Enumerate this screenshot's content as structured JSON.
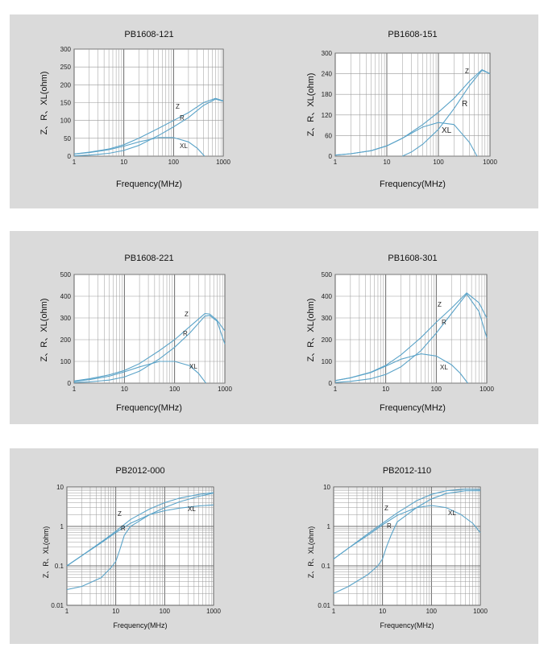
{
  "charts": [
    {
      "id": "pb1608-121",
      "type": "line",
      "title": "PB1608-121",
      "xlabel": "Frequency(MHz)",
      "ylabel": "Z、R、XL(ohm)",
      "xscale": "log",
      "yscale": "linear",
      "xlim": [
        1,
        1000
      ],
      "ylim": [
        0,
        300
      ],
      "xticks": [
        1,
        10,
        100,
        1000
      ],
      "yticks": [
        0,
        50,
        100,
        150,
        200,
        250,
        300
      ],
      "grid": true,
      "annotations": [
        "Z",
        "R",
        "XL"
      ],
      "series": [
        {
          "name": "Z",
          "x": [
            1,
            2,
            5,
            10,
            20,
            50,
            100,
            200,
            400,
            700,
            1000
          ],
          "y": [
            6,
            11,
            20,
            32,
            50,
            78,
            100,
            122,
            150,
            162,
            155
          ]
        },
        {
          "name": "R",
          "x": [
            1,
            2,
            5,
            10,
            20,
            50,
            100,
            200,
            400,
            700,
            1000
          ],
          "y": [
            1,
            3,
            8,
            16,
            30,
            58,
            82,
            108,
            142,
            160,
            154
          ]
        },
        {
          "name": "XL",
          "x": [
            1,
            2,
            5,
            10,
            20,
            50,
            100,
            200,
            300,
            420
          ],
          "y": [
            6,
            10,
            18,
            28,
            40,
            52,
            52,
            40,
            22,
            0
          ]
        }
      ]
    },
    {
      "id": "pb1608-151",
      "type": "line",
      "title": "PB1608-151",
      "xlabel": "Frequency(MHz)",
      "ylabel": "Z、R、XL(ohm)",
      "xscale": "log",
      "yscale": "linear",
      "xlim": [
        1,
        1000
      ],
      "ylim": [
        0,
        300
      ],
      "xticks": [
        1,
        10,
        100,
        1000
      ],
      "yticks": [
        0,
        60,
        120,
        180,
        240,
        300
      ],
      "grid": true,
      "annotations": [
        "Z",
        "R",
        "XL"
      ],
      "series": [
        {
          "name": "Z",
          "x": [
            1,
            2,
            5,
            10,
            20,
            50,
            100,
            200,
            400,
            700,
            1000
          ],
          "y": [
            3,
            7,
            16,
            30,
            52,
            92,
            128,
            168,
            218,
            252,
            240
          ]
        },
        {
          "name": "R",
          "x": [
            20,
            30,
            50,
            100,
            200,
            400,
            700,
            1000
          ],
          "y": [
            0,
            12,
            35,
            78,
            138,
            205,
            250,
            240
          ]
        },
        {
          "name": "XL",
          "x": [
            1,
            2,
            5,
            10,
            20,
            50,
            100,
            200,
            400,
            560
          ],
          "y": [
            3,
            7,
            16,
            30,
            52,
            85,
            98,
            92,
            40,
            0
          ]
        }
      ]
    },
    {
      "id": "pb1608-221",
      "type": "line",
      "title": "PB1608-221",
      "xlabel": "Frequency(MHz)",
      "ylabel": "Z、R、XL(ohm)",
      "xscale": "log",
      "yscale": "linear",
      "xlim": [
        1,
        1000
      ],
      "ylim": [
        0,
        500
      ],
      "xticks": [
        1,
        10,
        100,
        1000
      ],
      "yticks": [
        0,
        100,
        200,
        300,
        400,
        500
      ],
      "grid": true,
      "annotations": [
        "Z",
        "R",
        "XL"
      ],
      "series": [
        {
          "name": "Z",
          "x": [
            1,
            2,
            5,
            10,
            20,
            50,
            100,
            200,
            400,
            500,
            700,
            1000
          ],
          "y": [
            10,
            20,
            38,
            58,
            90,
            150,
            200,
            260,
            320,
            318,
            290,
            240
          ]
        },
        {
          "name": "R",
          "x": [
            1,
            2,
            5,
            10,
            20,
            50,
            100,
            200,
            400,
            500,
            700,
            1000
          ],
          "y": [
            3,
            6,
            14,
            28,
            55,
            112,
            165,
            230,
            308,
            312,
            285,
            180
          ]
        },
        {
          "name": "XL",
          "x": [
            1,
            2,
            5,
            10,
            20,
            50,
            100,
            200,
            300,
            420
          ],
          "y": [
            8,
            16,
            32,
            52,
            75,
            100,
            100,
            80,
            45,
            0
          ]
        }
      ]
    },
    {
      "id": "pb1608-301",
      "type": "line",
      "title": "PB1608-301",
      "xlabel": "Frequency(MHz)",
      "ylabel": "Z、R、XL(ohm)",
      "xscale": "log",
      "yscale": "linear",
      "xlim": [
        1,
        1000
      ],
      "ylim": [
        0,
        500
      ],
      "xticks": [
        1,
        10,
        100,
        1000
      ],
      "yticks": [
        0,
        100,
        200,
        300,
        400,
        500
      ],
      "grid": true,
      "annotations": [
        "Z",
        "R",
        "XL"
      ],
      "series": [
        {
          "name": "Z",
          "x": [
            1,
            2,
            5,
            10,
            20,
            50,
            100,
            200,
            400,
            700,
            1000
          ],
          "y": [
            12,
            25,
            50,
            82,
            130,
            210,
            280,
            345,
            415,
            370,
            300
          ]
        },
        {
          "name": "R",
          "x": [
            1,
            2,
            5,
            10,
            20,
            50,
            100,
            200,
            400,
            700,
            1000
          ],
          "y": [
            3,
            8,
            20,
            40,
            75,
            150,
            230,
            320,
            410,
            330,
            210
          ]
        },
        {
          "name": "XL",
          "x": [
            1,
            2,
            5,
            10,
            20,
            50,
            100,
            200,
            300,
            420
          ],
          "y": [
            12,
            24,
            48,
            78,
            110,
            135,
            125,
            85,
            45,
            0
          ]
        }
      ]
    },
    {
      "id": "pb2012-000",
      "type": "line",
      "title": "PB2012-000",
      "xlabel": "Frequency(MHz)",
      "ylabel": "Z、R、XL(ohm)",
      "xscale": "log",
      "yscale": "log",
      "xlim": [
        1,
        1000
      ],
      "ylim": [
        0.01,
        10
      ],
      "xticks": [
        1,
        10,
        100,
        1000
      ],
      "yticks": [
        0.01,
        0.1,
        1,
        10
      ],
      "grid": true,
      "annotations": [
        "Z",
        "R",
        "XL"
      ],
      "series": [
        {
          "name": "Z",
          "x": [
            1,
            2,
            5,
            10,
            20,
            50,
            100,
            200,
            500,
            1000
          ],
          "y": [
            0.1,
            0.18,
            0.4,
            0.75,
            1.5,
            2.8,
            4,
            5.2,
            6.5,
            7.2
          ]
        },
        {
          "name": "R",
          "x": [
            1,
            2,
            5,
            8,
            10,
            12,
            15,
            20,
            50,
            100,
            200,
            500,
            1000
          ],
          "y": [
            0.025,
            0.03,
            0.05,
            0.09,
            0.13,
            0.25,
            0.6,
            1.0,
            2.0,
            3.0,
            4.2,
            5.8,
            7.0
          ]
        },
        {
          "name": "XL",
          "x": [
            1,
            2,
            5,
            10,
            20,
            50,
            100,
            200,
            500,
            1000
          ],
          "y": [
            0.1,
            0.18,
            0.38,
            0.7,
            1.2,
            2.0,
            2.5,
            2.9,
            3.3,
            3.5
          ]
        }
      ]
    },
    {
      "id": "pb2012-110",
      "type": "line",
      "title": "PB2012-110",
      "xlabel": "Frequency(MHz)",
      "ylabel": "Z、R、XL(ohm)",
      "xscale": "log",
      "yscale": "log",
      "xlim": [
        1,
        1000
      ],
      "ylim": [
        0.01,
        10
      ],
      "xticks": [
        1,
        10,
        100,
        1000
      ],
      "yticks": [
        0.01,
        0.1,
        1,
        10
      ],
      "grid": true,
      "annotations": [
        "Z",
        "R",
        "XL"
      ],
      "series": [
        {
          "name": "Z",
          "x": [
            1,
            2,
            5,
            10,
            20,
            50,
            100,
            200,
            500,
            1000
          ],
          "y": [
            0.15,
            0.28,
            0.65,
            1.2,
            2.2,
            4.5,
            6.5,
            8,
            8.8,
            8.6
          ]
        },
        {
          "name": "R",
          "x": [
            1,
            2,
            5,
            8,
            10,
            12,
            15,
            20,
            50,
            100,
            200,
            500,
            1000
          ],
          "y": [
            0.02,
            0.03,
            0.06,
            0.1,
            0.15,
            0.3,
            0.6,
            1.3,
            3.0,
            5.0,
            6.8,
            8.0,
            8.0
          ]
        },
        {
          "name": "XL",
          "x": [
            1,
            2,
            5,
            10,
            20,
            50,
            100,
            200,
            400,
            700,
            1000
          ],
          "y": [
            0.15,
            0.28,
            0.6,
            1.1,
            1.9,
            3.0,
            3.4,
            3.0,
            2.0,
            1.2,
            0.7
          ]
        }
      ]
    }
  ]
}
